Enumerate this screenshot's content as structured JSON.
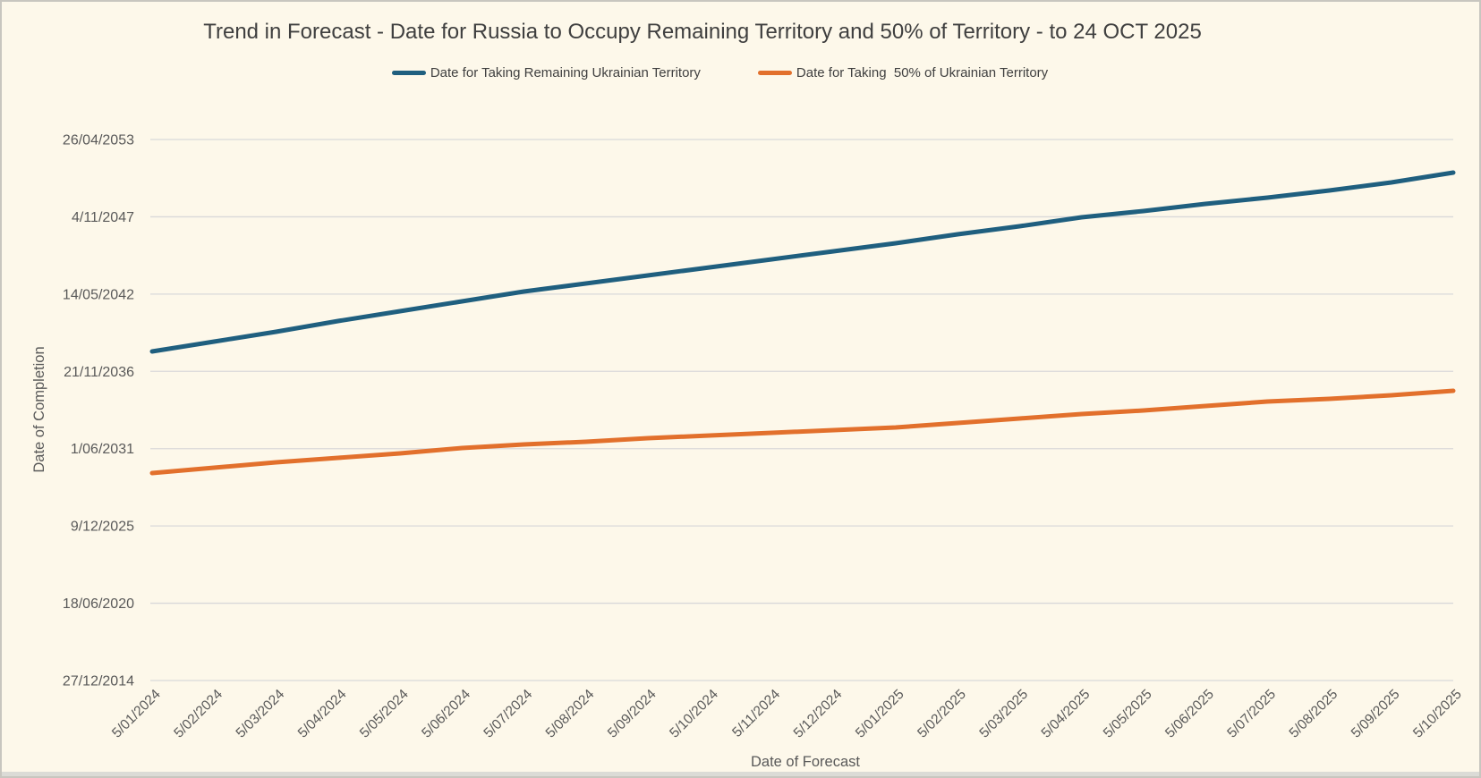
{
  "colors": {
    "background": "#FDF8EA",
    "frame_border": "#C8C6BF",
    "gridline": "#D9D9D9",
    "tick_text": "#595959",
    "title_text": "#3F3F3F",
    "series_remaining": "#1F5F7F",
    "series_fifty_pct": "#E2702C"
  },
  "chart_data": {
    "type": "line",
    "title": "Trend in Forecast - Date for Russia to Occupy Remaining Territory and 50% of Territory - to 24 OCT 2025",
    "xlabel": "Date of Forecast",
    "ylabel": "Date of Completion",
    "legend_position": "top",
    "grid": "horizontal",
    "x_categories": [
      "5/01/2024",
      "5/02/2024",
      "5/03/2024",
      "5/04/2024",
      "5/05/2024",
      "5/06/2024",
      "5/07/2024",
      "5/08/2024",
      "5/09/2024",
      "5/10/2024",
      "5/11/2024",
      "5/12/2024",
      "5/01/2025",
      "5/02/2025",
      "5/03/2025",
      "5/04/2025",
      "5/05/2025",
      "5/06/2025",
      "5/07/2025",
      "5/08/2025",
      "5/09/2025",
      "5/10/2025"
    ],
    "y_axis": {
      "tick_labels_bottom_to_top": [
        "27/12/2014",
        "18/06/2020",
        "9/12/2025",
        "1/06/2031",
        "21/11/2036",
        "14/05/2042",
        "4/11/2047",
        "26/04/2053"
      ],
      "tick_values_days": [
        0,
        2000,
        4000,
        6000,
        8000,
        10000,
        12000,
        14000
      ],
      "axis_min_date": "27/12/2014",
      "axis_max_date": "26/04/2053",
      "tick_interval_days": 2000,
      "value_unit": "days after 27/12/2014 (axis minimum)"
    },
    "series": [
      {
        "name": "Date for Taking Remaining Ukrainian Territory",
        "color_key": "series_remaining",
        "values": [
          8516,
          8770,
          9025,
          9302,
          9557,
          9811,
          10066,
          10274,
          10482,
          10691,
          10899,
          11107,
          11316,
          11547,
          11755,
          11987,
          12149,
          12334,
          12496,
          12681,
          12889,
          13143
        ],
        "estimated_dates": [
          "22/04/2038",
          "31/12/2038",
          "12/09/2039",
          "15/06/2040",
          "25/02/2041",
          "06/11/2041",
          "19/07/2042",
          "12/02/2043",
          "08/09/2043",
          "04/04/2044",
          "29/10/2044",
          "25/05/2045",
          "20/12/2045",
          "08/08/2046",
          "04/03/2047",
          "22/10/2047",
          "01/04/2048",
          "03/10/2048",
          "14/03/2049",
          "15/09/2049",
          "11/04/2050",
          "21/12/2050"
        ]
      },
      {
        "name": "Date for Taking  50% of Ukrainian Territory",
        "color_key": "series_fifty_pct",
        "values": [
          5369,
          5507,
          5646,
          5762,
          5878,
          6016,
          6109,
          6178,
          6271,
          6340,
          6410,
          6479,
          6549,
          6664,
          6780,
          6896,
          6988,
          7104,
          7220,
          7289,
          7382,
          7497
        ],
        "estimated_dates": [
          "09/09/2029",
          "25/01/2030",
          "13/06/2030",
          "07/10/2030",
          "30/01/2031",
          "17/06/2031",
          "18/09/2031",
          "26/11/2031",
          "27/02/2032",
          "06/05/2032",
          "15/07/2032",
          "22/09/2032",
          "01/12/2032",
          "27/03/2033",
          "21/07/2033",
          "14/11/2033",
          "13/02/2034",
          "09/06/2034",
          "03/10/2034",
          "11/12/2034",
          "14/03/2035",
          "07/07/2035"
        ]
      }
    ]
  }
}
